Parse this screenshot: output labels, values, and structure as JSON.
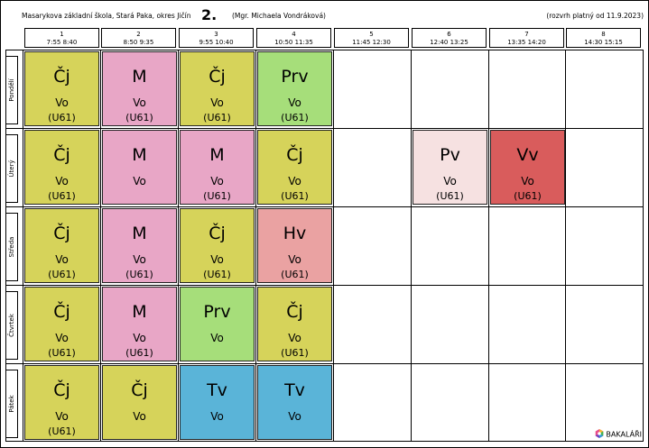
{
  "header": {
    "school": "Masarykova základní škola, Stará Paka, okres Jičín",
    "class_name": "2.",
    "teacher": "(Mgr. Michaela Vondráková)",
    "valid_from": "(rozvrh platný od 11.9.2023)"
  },
  "periods": [
    {
      "num": "1",
      "time": "7:55  8:40"
    },
    {
      "num": "2",
      "time": "8:50  9:35"
    },
    {
      "num": "3",
      "time": "9:55 10:40"
    },
    {
      "num": "4",
      "time": "10:50 11:35"
    },
    {
      "num": "5",
      "time": "11:45 12:30"
    },
    {
      "num": "6",
      "time": "12:40 13:25"
    },
    {
      "num": "7",
      "time": "13:35 14:20"
    },
    {
      "num": "8",
      "time": "14:30 15:15"
    }
  ],
  "days": [
    {
      "label": "Pondělí",
      "lessons": [
        {
          "subject": "Čj",
          "teacher": "Vo",
          "room": "(U61)",
          "color": "#d6d35a"
        },
        {
          "subject": "M",
          "teacher": "Vo",
          "room": "(U61)",
          "color": "#e8a6c6"
        },
        {
          "subject": "Čj",
          "teacher": "Vo",
          "room": "(U61)",
          "color": "#d6d35a"
        },
        {
          "subject": "Prv",
          "teacher": "Vo",
          "room": "(U61)",
          "color": "#a6de7a"
        },
        null,
        null,
        null,
        null
      ]
    },
    {
      "label": "Úterý",
      "lessons": [
        {
          "subject": "Čj",
          "teacher": "Vo",
          "room": "(U61)",
          "color": "#d6d35a"
        },
        {
          "subject": "M",
          "teacher": "Vo",
          "room": "",
          "color": "#e8a6c6"
        },
        {
          "subject": "M",
          "teacher": "Vo",
          "room": "(U61)",
          "color": "#e8a6c6"
        },
        {
          "subject": "Čj",
          "teacher": "Vo",
          "room": "(U61)",
          "color": "#d6d35a"
        },
        null,
        {
          "subject": "Pv",
          "teacher": "Vo",
          "room": "(U61)",
          "color": "#f6e1e1"
        },
        {
          "subject": "Vv",
          "teacher": "Vo",
          "room": "(U61)",
          "color": "#d95c5c"
        },
        null
      ]
    },
    {
      "label": "Středa",
      "lessons": [
        {
          "subject": "Čj",
          "teacher": "Vo",
          "room": "(U61)",
          "color": "#d6d35a"
        },
        {
          "subject": "M",
          "teacher": "Vo",
          "room": "(U61)",
          "color": "#e8a6c6"
        },
        {
          "subject": "Čj",
          "teacher": "Vo",
          "room": "(U61)",
          "color": "#d6d35a"
        },
        {
          "subject": "Hv",
          "teacher": "Vo",
          "room": "(U61)",
          "color": "#eaa2a2"
        },
        null,
        null,
        null,
        null
      ]
    },
    {
      "label": "Čtvrtek",
      "lessons": [
        {
          "subject": "Čj",
          "teacher": "Vo",
          "room": "(U61)",
          "color": "#d6d35a"
        },
        {
          "subject": "M",
          "teacher": "Vo",
          "room": "(U61)",
          "color": "#e8a6c6"
        },
        {
          "subject": "Prv",
          "teacher": "Vo",
          "room": "",
          "color": "#a6de7a"
        },
        {
          "subject": "Čj",
          "teacher": "Vo",
          "room": "(U61)",
          "color": "#d6d35a"
        },
        null,
        null,
        null,
        null
      ]
    },
    {
      "label": "Pátek",
      "lessons": [
        {
          "subject": "Čj",
          "teacher": "Vo",
          "room": "(U61)",
          "color": "#d6d35a"
        },
        {
          "subject": "Čj",
          "teacher": "Vo",
          "room": "",
          "color": "#d6d35a"
        },
        {
          "subject": "Tv",
          "teacher": "Vo",
          "room": "",
          "color": "#5ab4d8"
        },
        {
          "subject": "Tv",
          "teacher": "Vo",
          "room": "",
          "color": "#5ab4d8"
        },
        null,
        null,
        null,
        null
      ]
    }
  ],
  "logo": {
    "label": "BAKALÁŘI",
    "icon": "bakalari-logo-icon"
  }
}
